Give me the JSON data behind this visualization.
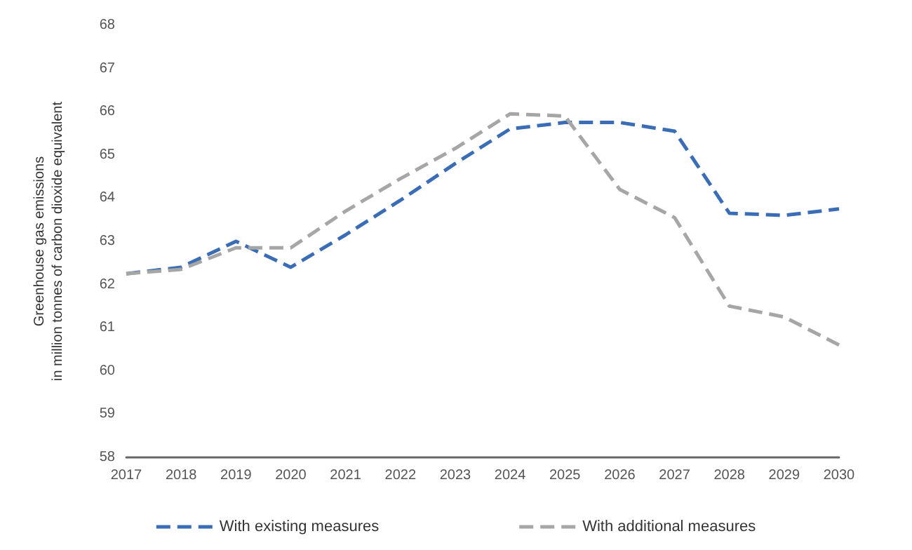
{
  "chart_data": {
    "type": "line",
    "ylabel": "Greenhouse gas emissions\nin million tonnes of carbon dioxide equivalent",
    "categories": [
      "2017",
      "2018",
      "2019",
      "2020",
      "2021",
      "2022",
      "2023",
      "2024",
      "2025",
      "2026",
      "2027",
      "2028",
      "2029",
      "2030"
    ],
    "series": [
      {
        "name": "With existing measures",
        "color": "#3a6db5",
        "values": [
          62.25,
          62.4,
          63.0,
          62.4,
          63.15,
          63.95,
          64.8,
          65.6,
          65.75,
          65.75,
          65.55,
          63.65,
          63.6,
          63.75
        ]
      },
      {
        "name": "With additional measures",
        "color": "#a6a6a6",
        "values": [
          62.25,
          62.35,
          62.85,
          62.85,
          63.7,
          64.45,
          65.15,
          65.95,
          65.9,
          64.2,
          63.55,
          61.5,
          61.25,
          60.6
        ]
      }
    ],
    "ylim": [
      58,
      68
    ],
    "yticks": [
      58,
      59,
      60,
      61,
      62,
      63,
      64,
      65,
      66,
      67,
      68
    ],
    "grid": false,
    "legend": "bottom",
    "marker": "none",
    "line_style": "dashed"
  }
}
